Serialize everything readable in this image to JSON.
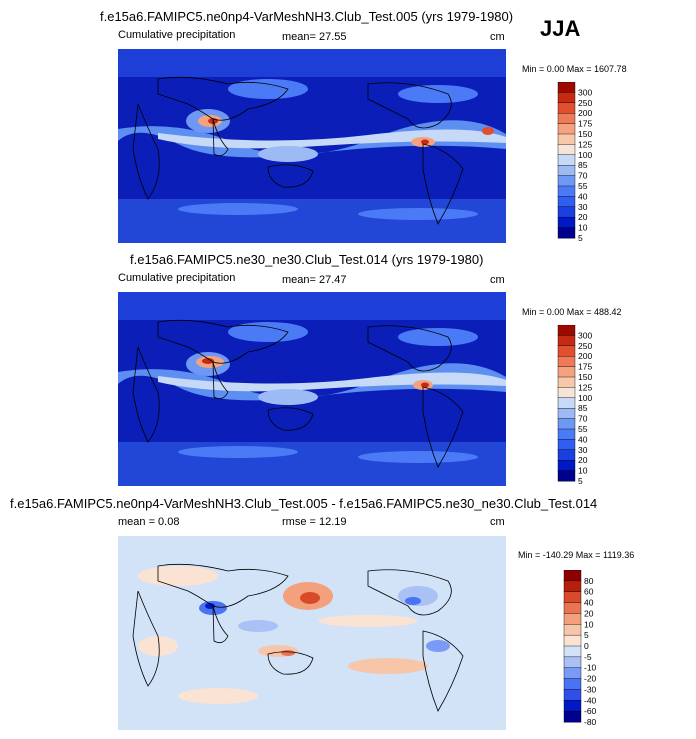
{
  "season": "JJA",
  "units": "cm",
  "panels": [
    {
      "title": "f.e15a6.FAMIPC5.ne0np4-VarMeshNH3.Club_Test.005 (yrs 1979-1980)",
      "left_label": "Cumulative precipitation",
      "mid_label": "mean=  27.55",
      "right_label": "cm",
      "minmax": "Min =   0.00 Max = 1607.78",
      "palette": "wet",
      "colorbar_labels": [
        "300",
        "250",
        "200",
        "175",
        "150",
        "125",
        "100",
        "85",
        "70",
        "55",
        "40",
        "30",
        "20",
        "10",
        "5"
      ]
    },
    {
      "title": "f.e15a6.FAMIPC5.ne30_ne30.Club_Test.014 (yrs 1979-1980)",
      "left_label": "Cumulative precipitation",
      "mid_label": "mean=  27.47",
      "right_label": "cm",
      "minmax": "Min =   0.00 Max = 488.42",
      "palette": "wet",
      "colorbar_labels": [
        "300",
        "250",
        "200",
        "175",
        "150",
        "125",
        "100",
        "85",
        "70",
        "55",
        "40",
        "30",
        "20",
        "10",
        "5"
      ]
    },
    {
      "title": "f.e15a6.FAMIPC5.ne0np4-VarMeshNH3.Club_Test.005 - f.e15a6.FAMIPC5.ne30_ne30.Club_Test.014",
      "left_label": "mean =   0.08",
      "mid_label": "rmse =  12.19",
      "right_label": "cm",
      "minmax": "Min = -140.29 Max = 1119.36",
      "palette": "diff",
      "colorbar_labels": [
        "80",
        "60",
        "40",
        "20",
        "10",
        "5",
        "0",
        "-5",
        "-10",
        "-20",
        "-30",
        "-40",
        "-60",
        "-80"
      ]
    }
  ],
  "chart_data": [
    {
      "type": "heatmap",
      "title": "f.e15a6.FAMIPC5.ne0np4-VarMeshNH3.Club_Test.005 (yrs 1979-1980)",
      "variable": "Cumulative precipitation",
      "units": "cm",
      "mean": 27.55,
      "min": 0.0,
      "max": 1607.78,
      "contour_levels": [
        5,
        10,
        20,
        30,
        40,
        55,
        70,
        85,
        100,
        125,
        150,
        175,
        200,
        250,
        300
      ]
    },
    {
      "type": "heatmap",
      "title": "f.e15a6.FAMIPC5.ne30_ne30.Club_Test.014 (yrs 1979-1980)",
      "variable": "Cumulative precipitation",
      "units": "cm",
      "mean": 27.47,
      "min": 0.0,
      "max": 488.42,
      "contour_levels": [
        5,
        10,
        20,
        30,
        40,
        55,
        70,
        85,
        100,
        125,
        150,
        175,
        200,
        250,
        300
      ]
    },
    {
      "type": "heatmap",
      "title": "f.e15a6.FAMIPC5.ne0np4-VarMeshNH3.Club_Test.005 - f.e15a6.FAMIPC5.ne30_ne30.Club_Test.014",
      "units": "cm",
      "mean": 0.08,
      "rmse": 12.19,
      "min": -140.29,
      "max": 1119.36,
      "contour_levels": [
        -80,
        -60,
        -40,
        -30,
        -20,
        -10,
        -5,
        0,
        5,
        10,
        20,
        40,
        60,
        80
      ]
    }
  ],
  "colors": {
    "wet": [
      "#00008f",
      "#0019c7",
      "#1a3fe0",
      "#2f5ef0",
      "#4a7af5",
      "#6f98f5",
      "#9cbbf5",
      "#c6d9f7",
      "#f7e4d8",
      "#f7c7aa",
      "#f5a37e",
      "#ef7a57",
      "#e0502f",
      "#c72a12",
      "#9c0a00"
    ],
    "diff": [
      "#00008f",
      "#0019c7",
      "#2f4fe8",
      "#4a72f5",
      "#7a9bf5",
      "#a9c1f5",
      "#d2e2f7",
      "#fbe3d3",
      "#f7c6a8",
      "#f3a07c",
      "#ea7452",
      "#d84a2a",
      "#b71f0c",
      "#8f0000"
    ]
  }
}
